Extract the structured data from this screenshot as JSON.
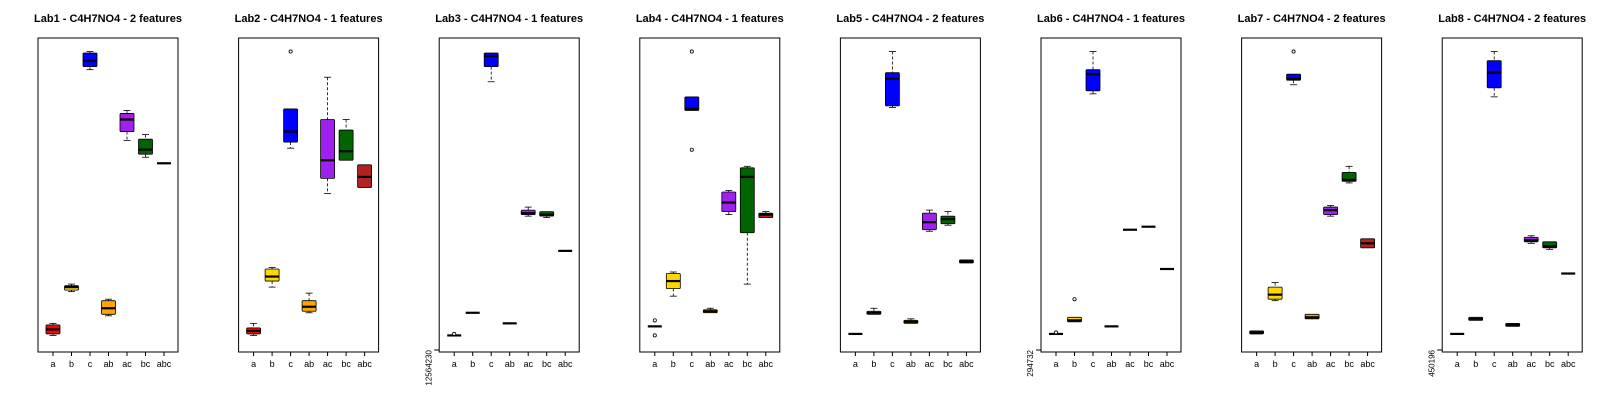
{
  "figure": {
    "type": "boxplot-panels"
  },
  "chart_data": [
    {
      "type": "boxplot",
      "title": "Lab1 - C4H7NO4 - 2 features",
      "categories": [
        "a",
        "b",
        "c",
        "ab",
        "ac",
        "bc",
        "abc"
      ],
      "y_tick_label": "",
      "ylim": [
        0,
        100
      ],
      "boxes": [
        {
          "category": "a",
          "color": "#ff0000",
          "min": 3.5,
          "q1": 4.0,
          "median": 5.5,
          "q3": 7.0,
          "max": 7.5,
          "outliers": []
        },
        {
          "category": "b",
          "color": "#ffd700",
          "min": 18.0,
          "q1": 18.5,
          "median": 19.5,
          "q3": 20.0,
          "max": 20.5,
          "outliers": []
        },
        {
          "category": "c",
          "color": "#0000ff",
          "min": 91.5,
          "q1": 92.5,
          "median": 94.5,
          "q3": 97.0,
          "max": 97.5,
          "outliers": []
        },
        {
          "category": "ab",
          "color": "#ffa500",
          "min": 10.0,
          "q1": 10.5,
          "median": 12.5,
          "q3": 15.0,
          "max": 15.5,
          "outliers": []
        },
        {
          "category": "ac",
          "color": "#a020f0",
          "min": 68.0,
          "q1": 71.0,
          "median": 75.0,
          "q3": 77.0,
          "max": 78.0,
          "outliers": []
        },
        {
          "category": "bc",
          "color": "#006400",
          "min": 62.5,
          "q1": 63.5,
          "median": 65.0,
          "q3": 68.5,
          "max": 70.0,
          "outliers": []
        },
        {
          "category": "abc",
          "color": "#000000",
          "min": 60.5,
          "q1": 60.5,
          "median": 60.5,
          "q3": 60.5,
          "max": 60.5,
          "outliers": []
        }
      ]
    },
    {
      "type": "boxplot",
      "title": "Lab2 - C4H7NO4 - 1 features",
      "categories": [
        "a",
        "b",
        "c",
        "ab",
        "ac",
        "bc",
        "abc"
      ],
      "y_tick_label": "",
      "ylim": [
        0,
        100
      ],
      "boxes": [
        {
          "category": "a",
          "color": "#ff0000",
          "min": 3.5,
          "q1": 4.0,
          "median": 5.0,
          "q3": 6.0,
          "max": 7.5,
          "outliers": []
        },
        {
          "category": "b",
          "color": "#ffd700",
          "min": 19.5,
          "q1": 21.5,
          "median": 23.0,
          "q3": 25.5,
          "max": 26.0,
          "outliers": []
        },
        {
          "category": "c",
          "color": "#0000ff",
          "min": 65.5,
          "q1": 67.5,
          "median": 71.0,
          "q3": 78.5,
          "max": 78.5,
          "outliers": [
            97.5
          ]
        },
        {
          "category": "ab",
          "color": "#ffa500",
          "min": 11.0,
          "q1": 11.5,
          "median": 13.0,
          "q3": 15.0,
          "max": 17.5,
          "outliers": []
        },
        {
          "category": "ac",
          "color": "#a020f0",
          "min": 50.5,
          "q1": 55.5,
          "median": 61.5,
          "q3": 75.0,
          "max": 89.0,
          "outliers": []
        },
        {
          "category": "bc",
          "color": "#006400",
          "min": 61.5,
          "q1": 61.5,
          "median": 64.5,
          "q3": 71.5,
          "max": 75.0,
          "outliers": []
        },
        {
          "category": "abc",
          "color": "#b22222",
          "min": 52.5,
          "q1": 52.5,
          "median": 56.0,
          "q3": 60.0,
          "max": 60.0,
          "outliers": []
        }
      ]
    },
    {
      "type": "boxplot",
      "title": "Lab3 - C4H7NO4 - 1 features",
      "categories": [
        "a",
        "b",
        "c",
        "ab",
        "ac",
        "bc",
        "abc"
      ],
      "y_tick_label": "12564230",
      "ylim": [
        0,
        100
      ],
      "boxes": [
        {
          "category": "a",
          "color": "#000000",
          "min": 3.5,
          "q1": 3.5,
          "median": 3.5,
          "q3": 3.5,
          "max": 3.5,
          "outliers": [
            4.0
          ]
        },
        {
          "category": "b",
          "color": "#000000",
          "min": 11.0,
          "q1": 11.0,
          "median": 11.0,
          "q3": 11.0,
          "max": 11.0,
          "outliers": []
        },
        {
          "category": "c",
          "color": "#0000ff",
          "min": 87.5,
          "q1": 92.5,
          "median": 96.0,
          "q3": 97.0,
          "max": 97.0,
          "outliers": []
        },
        {
          "category": "ab",
          "color": "#000000",
          "min": 7.5,
          "q1": 7.5,
          "median": 7.5,
          "q3": 7.5,
          "max": 7.5,
          "outliers": []
        },
        {
          "category": "ac",
          "color": "#a020f0",
          "min": 43.0,
          "q1": 43.5,
          "median": 44.0,
          "q3": 45.0,
          "max": 46.0,
          "outliers": []
        },
        {
          "category": "bc",
          "color": "#006400",
          "min": 42.5,
          "q1": 43.0,
          "median": 43.5,
          "q3": 44.5,
          "max": 44.5,
          "outliers": []
        },
        {
          "category": "abc",
          "color": "#000000",
          "min": 31.5,
          "q1": 31.5,
          "median": 31.5,
          "q3": 31.5,
          "max": 31.5,
          "outliers": []
        }
      ]
    },
    {
      "type": "boxplot",
      "title": "Lab4 - C4H7NO4 - 1 features",
      "categories": [
        "a",
        "b",
        "c",
        "ab",
        "ac",
        "bc",
        "abc"
      ],
      "y_tick_label": "",
      "ylim": [
        0,
        100
      ],
      "boxes": [
        {
          "category": "a",
          "color": "#000000",
          "min": 6.5,
          "q1": 6.5,
          "median": 6.5,
          "q3": 6.5,
          "max": 6.5,
          "outliers": [
            8.5,
            3.5
          ]
        },
        {
          "category": "b",
          "color": "#ffd700",
          "min": 16.5,
          "q1": 19.0,
          "median": 21.5,
          "q3": 24.0,
          "max": 24.5,
          "outliers": []
        },
        {
          "category": "c",
          "color": "#0000ff",
          "min": 78.0,
          "q1": 78.0,
          "median": 78.5,
          "q3": 82.5,
          "max": 82.5,
          "outliers": [
            97.5,
            65.0
          ]
        },
        {
          "category": "ab",
          "color": "#ffa500",
          "min": 11.0,
          "q1": 11.0,
          "median": 11.5,
          "q3": 12.0,
          "max": 12.5,
          "outliers": []
        },
        {
          "category": "ac",
          "color": "#a020f0",
          "min": 43.5,
          "q1": 44.5,
          "median": 47.5,
          "q3": 51.0,
          "max": 51.5,
          "outliers": []
        },
        {
          "category": "bc",
          "color": "#006400",
          "min": 20.5,
          "q1": 37.5,
          "median": 56.0,
          "q3": 59.0,
          "max": 59.5,
          "outliers": []
        },
        {
          "category": "abc",
          "color": "#b22222",
          "min": 42.5,
          "q1": 42.5,
          "median": 43.5,
          "q3": 44.0,
          "max": 44.5,
          "outliers": []
        }
      ]
    },
    {
      "type": "boxplot",
      "title": "Lab5 - C4H7NO4 - 2 features",
      "categories": [
        "a",
        "b",
        "c",
        "ab",
        "ac",
        "bc",
        "abc"
      ],
      "y_tick_label": "",
      "ylim": [
        0,
        100
      ],
      "boxes": [
        {
          "category": "a",
          "color": "#000000",
          "min": 4.0,
          "q1": 4.0,
          "median": 4.0,
          "q3": 4.0,
          "max": 4.0,
          "outliers": []
        },
        {
          "category": "b",
          "color": "#ffd700",
          "min": 10.5,
          "q1": 10.5,
          "median": 11.0,
          "q3": 11.5,
          "max": 12.5,
          "outliers": []
        },
        {
          "category": "c",
          "color": "#0000ff",
          "min": 79.0,
          "q1": 79.5,
          "median": 88.5,
          "q3": 90.5,
          "max": 97.5,
          "outliers": []
        },
        {
          "category": "ab",
          "color": "#ffa500",
          "min": 7.5,
          "q1": 7.5,
          "median": 8.0,
          "q3": 8.5,
          "max": 9.0,
          "outliers": []
        },
        {
          "category": "ac",
          "color": "#a020f0",
          "min": 38.0,
          "q1": 38.5,
          "median": 41.0,
          "q3": 44.0,
          "max": 45.0,
          "outliers": []
        },
        {
          "category": "bc",
          "color": "#006400",
          "min": 40.0,
          "q1": 40.5,
          "median": 42.0,
          "q3": 43.0,
          "max": 44.5,
          "outliers": []
        },
        {
          "category": "abc",
          "color": "#b22222",
          "min": 27.5,
          "q1": 27.5,
          "median": 28.0,
          "q3": 28.5,
          "max": 28.5,
          "outliers": []
        }
      ]
    },
    {
      "type": "boxplot",
      "title": "Lab6 - C4H7NO4 - 1 features",
      "categories": [
        "a",
        "b",
        "c",
        "ab",
        "ac",
        "bc",
        "abc"
      ],
      "y_tick_label": "294732",
      "ylim": [
        0,
        100
      ],
      "boxes": [
        {
          "category": "a",
          "color": "#000000",
          "min": 4.0,
          "q1": 4.0,
          "median": 4.0,
          "q3": 4.0,
          "max": 4.0,
          "outliers": [
            4.5
          ]
        },
        {
          "category": "b",
          "color": "#ffd700",
          "min": 8.0,
          "q1": 8.0,
          "median": 8.5,
          "q3": 9.5,
          "max": 9.5,
          "outliers": [
            15.5
          ]
        },
        {
          "category": "c",
          "color": "#0000ff",
          "min": 83.5,
          "q1": 84.5,
          "median": 90.0,
          "q3": 91.5,
          "max": 97.5,
          "outliers": []
        },
        {
          "category": "ab",
          "color": "#000000",
          "min": 6.5,
          "q1": 6.5,
          "median": 6.5,
          "q3": 6.5,
          "max": 6.5,
          "outliers": []
        },
        {
          "category": "ac",
          "color": "#000000",
          "min": 38.5,
          "q1": 38.5,
          "median": 38.5,
          "q3": 38.5,
          "max": 38.5,
          "outliers": []
        },
        {
          "category": "bc",
          "color": "#000000",
          "min": 39.5,
          "q1": 39.5,
          "median": 39.5,
          "q3": 39.5,
          "max": 39.5,
          "outliers": []
        },
        {
          "category": "abc",
          "color": "#000000",
          "min": 25.5,
          "q1": 25.5,
          "median": 25.5,
          "q3": 25.5,
          "max": 25.5,
          "outliers": []
        }
      ]
    },
    {
      "type": "boxplot",
      "title": "Lab7 - C4H7NO4 - 2 features",
      "categories": [
        "a",
        "b",
        "c",
        "ab",
        "ac",
        "bc",
        "abc"
      ],
      "y_tick_label": "",
      "ylim": [
        0,
        100
      ],
      "boxes": [
        {
          "category": "a",
          "color": "#ff0000",
          "min": 4.0,
          "q1": 4.0,
          "median": 4.5,
          "q3": 5.0,
          "max": 5.0,
          "outliers": []
        },
        {
          "category": "b",
          "color": "#ffd700",
          "min": 15.0,
          "q1": 15.5,
          "median": 17.0,
          "q3": 19.5,
          "max": 21.0,
          "outliers": []
        },
        {
          "category": "c",
          "color": "#0000ff",
          "min": 86.5,
          "q1": 88.0,
          "median": 88.5,
          "q3": 90.0,
          "max": 90.0,
          "outliers": [
            97.5
          ]
        },
        {
          "category": "ab",
          "color": "#ffa500",
          "min": 9.0,
          "q1": 9.0,
          "median": 9.5,
          "q3": 10.5,
          "max": 10.5,
          "outliers": []
        },
        {
          "category": "ac",
          "color": "#a020f0",
          "min": 43.0,
          "q1": 43.5,
          "median": 45.0,
          "q3": 46.0,
          "max": 46.5,
          "outliers": []
        },
        {
          "category": "bc",
          "color": "#006400",
          "min": 54.0,
          "q1": 54.5,
          "median": 55.0,
          "q3": 57.5,
          "max": 59.5,
          "outliers": []
        },
        {
          "category": "abc",
          "color": "#b22222",
          "min": 32.5,
          "q1": 32.5,
          "median": 34.0,
          "q3": 35.5,
          "max": 35.5,
          "outliers": []
        }
      ]
    },
    {
      "type": "boxplot",
      "title": "Lab8 - C4H7NO4 - 2 features",
      "categories": [
        "a",
        "b",
        "c",
        "ab",
        "ac",
        "bc",
        "abc"
      ],
      "y_tick_label": "450196",
      "ylim": [
        0,
        100
      ],
      "boxes": [
        {
          "category": "a",
          "color": "#000000",
          "min": 4.0,
          "q1": 4.0,
          "median": 4.0,
          "q3": 4.0,
          "max": 4.0,
          "outliers": []
        },
        {
          "category": "b",
          "color": "#ffd700",
          "min": 8.5,
          "q1": 8.5,
          "median": 9.0,
          "q3": 9.5,
          "max": 9.5,
          "outliers": []
        },
        {
          "category": "c",
          "color": "#0000ff",
          "min": 82.5,
          "q1": 85.5,
          "median": 90.5,
          "q3": 94.5,
          "max": 97.5,
          "outliers": []
        },
        {
          "category": "ab",
          "color": "#000000",
          "min": 6.5,
          "q1": 6.5,
          "median": 7.0,
          "q3": 7.5,
          "max": 7.5,
          "outliers": []
        },
        {
          "category": "ac",
          "color": "#a020f0",
          "min": 34.0,
          "q1": 34.5,
          "median": 35.0,
          "q3": 36.0,
          "max": 36.5,
          "outliers": []
        },
        {
          "category": "bc",
          "color": "#006400",
          "min": 32.0,
          "q1": 32.5,
          "median": 33.0,
          "q3": 34.5,
          "max": 34.5,
          "outliers": []
        },
        {
          "category": "abc",
          "color": "#000000",
          "min": 24.0,
          "q1": 24.0,
          "median": 24.0,
          "q3": 24.0,
          "max": 24.0,
          "outliers": []
        }
      ]
    }
  ]
}
